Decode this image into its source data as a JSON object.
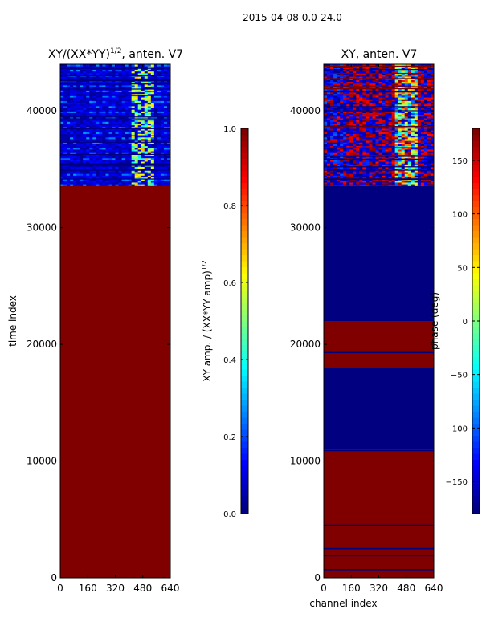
{
  "figure": {
    "suptitle": "2015-04-08 0.0-24.0"
  },
  "chart_data": [
    {
      "type": "heatmap",
      "title": "XY/(XX*YY)^{1/2}, anten. V7",
      "title_main": "XY/(XX*YY)",
      "title_exp": "1/2",
      "title_suffix": ", anten. V7",
      "xlabel": "",
      "ylabel": "time index",
      "xlim": [
        0,
        640
      ],
      "ylim": [
        0,
        44000
      ],
      "xticks": [
        0,
        160,
        320,
        480,
        640
      ],
      "yticks": [
        0,
        10000,
        20000,
        30000,
        40000
      ],
      "colormap": "jet",
      "regions": [
        {
          "y0": 0,
          "y1": 33600,
          "value": 1.0
        },
        {
          "y0": 33600,
          "y1": 44000,
          "value": 0.05,
          "note": "noisy low-amplitude band with stripes"
        }
      ],
      "colorbar": {
        "label": "XY amp. / (XX*YY amp)^{1/2}",
        "label_main": "XY amp. / (XX*YY amp)",
        "label_exp": "1/2",
        "min": 0.0,
        "max": 1.0,
        "ticks": [
          "0.0",
          "0.2",
          "0.4",
          "0.6",
          "0.8",
          "1.0"
        ],
        "tick_values": [
          0.0,
          0.2,
          0.4,
          0.6,
          0.8,
          1.0
        ]
      }
    },
    {
      "type": "heatmap",
      "title": "XY, anten. V7",
      "xlabel": "channel index",
      "ylabel": "",
      "xlim": [
        0,
        640
      ],
      "ylim": [
        0,
        44000
      ],
      "xticks": [
        0,
        160,
        320,
        480,
        640
      ],
      "yticks": [
        0,
        10000,
        20000,
        30000,
        40000
      ],
      "colormap": "jet",
      "regions": [
        {
          "y0": 0,
          "y1": 11000,
          "value": 180
        },
        {
          "y0": 11000,
          "y1": 18000,
          "value": -180
        },
        {
          "y0": 18000,
          "y1": 22000,
          "value": 180
        },
        {
          "y0": 22000,
          "y1": 33600,
          "value": -180
        },
        {
          "y0": 33600,
          "y1": 44000,
          "value": 0,
          "note": "noisy phase band"
        }
      ],
      "colorbar": {
        "label": "phase (deg)",
        "min": -180,
        "max": 180,
        "ticks": [
          "−150",
          "−100",
          "−50",
          "0",
          "50",
          "100",
          "150"
        ],
        "tick_values": [
          -150,
          -100,
          -50,
          0,
          50,
          100,
          150
        ]
      }
    }
  ],
  "colors": {
    "jet_dark_red": "#7f0000",
    "jet_dark_blue": "#00007f",
    "cyan": "#00ffff",
    "yellow": "#ffff00"
  }
}
